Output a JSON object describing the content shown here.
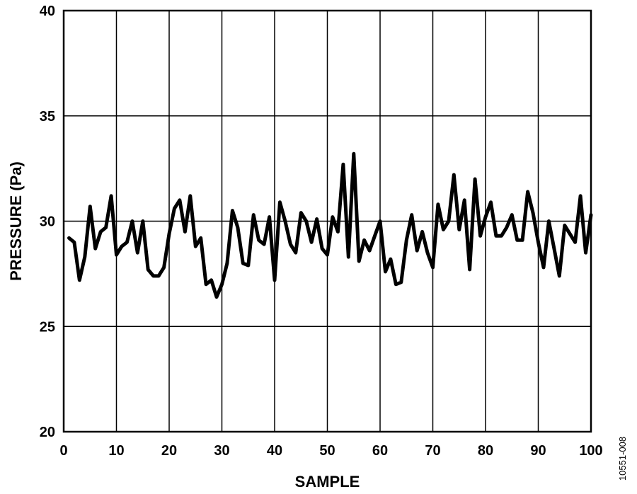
{
  "chart_data": {
    "type": "line",
    "xlabel": "SAMPLE",
    "ylabel": "PRESSURE (Pa)",
    "xlim": [
      0,
      100
    ],
    "ylim": [
      20,
      40
    ],
    "xticks": [
      0,
      10,
      20,
      30,
      40,
      50,
      60,
      70,
      80,
      90,
      100
    ],
    "yticks": [
      20,
      25,
      30,
      35,
      40
    ],
    "grid": true,
    "line_color": "#000000",
    "series": [
      {
        "x": [
          1,
          2,
          3,
          4,
          5,
          6,
          7,
          8,
          9,
          10,
          11,
          12,
          13,
          14,
          15,
          16,
          17,
          18,
          19,
          20,
          21,
          22,
          23,
          24,
          25,
          26,
          27,
          28,
          29,
          30,
          31,
          32,
          33,
          34,
          35,
          36,
          37,
          38,
          39,
          40,
          41,
          42,
          43,
          44,
          45,
          46,
          47,
          48,
          49,
          50,
          51,
          52,
          53,
          54,
          55,
          56,
          57,
          58,
          59,
          60,
          61,
          62,
          63,
          64,
          65,
          66,
          67,
          68,
          69,
          70,
          71,
          72,
          73,
          74,
          75,
          76,
          77,
          78,
          79,
          80,
          81,
          82,
          83,
          84,
          85,
          86,
          87,
          88,
          89,
          90,
          91,
          92,
          93,
          94,
          95,
          96,
          97,
          98,
          99,
          100
        ],
        "y": [
          29.2,
          29.0,
          27.2,
          28.3,
          30.7,
          28.7,
          29.5,
          29.7,
          31.2,
          28.4,
          28.8,
          29.0,
          30.0,
          28.5,
          30.0,
          27.7,
          27.4,
          27.4,
          27.8,
          29.4,
          30.6,
          31.0,
          29.5,
          31.2,
          28.8,
          29.2,
          27.0,
          27.2,
          26.4,
          27.0,
          28.0,
          30.5,
          29.7,
          28.0,
          27.9,
          30.3,
          29.1,
          28.9,
          30.2,
          27.2,
          30.9,
          30.0,
          28.9,
          28.5,
          30.4,
          30.0,
          29.0,
          30.1,
          28.7,
          28.4,
          30.2,
          29.5,
          32.7,
          28.3,
          33.2,
          28.1,
          29.1,
          28.6,
          29.3,
          30.0,
          27.6,
          28.2,
          27.0,
          27.1,
          29.1,
          30.3,
          28.6,
          29.5,
          28.5,
          27.8,
          30.8,
          29.6,
          30.0,
          32.2,
          29.6,
          31.0,
          27.7,
          32.0,
          29.3,
          30.2,
          30.9,
          29.3,
          29.3,
          29.7,
          30.3,
          29.1,
          29.1,
          31.4,
          30.4,
          29.0,
          27.8,
          30.0,
          28.7,
          27.4,
          29.8,
          29.4,
          29.0,
          31.2,
          28.5,
          30.3
        ]
      }
    ]
  },
  "figure_id": "10551-008"
}
